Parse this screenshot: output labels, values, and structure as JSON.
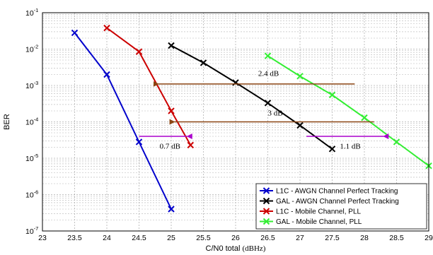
{
  "chart_data": {
    "type": "line",
    "xlabel_main": "C/N0 total",
    "xlabel_unit": "(dBHz)",
    "ylabel": "BER",
    "xlim": [
      23,
      29
    ],
    "ylim_exp": [
      -7,
      -1
    ],
    "y_scale": "log",
    "x_ticks": [
      23,
      23.5,
      24,
      24.5,
      25,
      25.5,
      26,
      26.5,
      27,
      27.5,
      28,
      28.5,
      29
    ],
    "y_tick_exponents": [
      -7,
      -6,
      -5,
      -4,
      -3,
      -2,
      -1
    ],
    "y_tick_base": "10",
    "grid": true,
    "legend_position": "bottom-right",
    "series": [
      {
        "name": "L1C - AWGN Channel Perfect Tracking",
        "color": "#0000cc",
        "x": [
          23.5,
          24,
          24.5,
          25
        ],
        "y": [
          0.028,
          0.002,
          2.8e-05,
          4e-07
        ]
      },
      {
        "name": "GAL - AWGN Channel Perfect Tracking",
        "color": "#000000",
        "x": [
          25,
          25.5,
          26,
          26.5,
          27,
          27.5
        ],
        "y": [
          0.0125,
          0.0042,
          0.0012,
          0.00033,
          8e-05,
          1.8e-05
        ]
      },
      {
        "name": "L1C - Mobile Channel, PLL",
        "color": "#cc0000",
        "x": [
          24,
          24.5,
          25,
          25.3
        ],
        "y": [
          0.038,
          0.0085,
          0.0002,
          2.3e-05
        ]
      },
      {
        "name": "GAL - Mobile Channel, PLL",
        "color": "#33ee33",
        "x": [
          26.5,
          27,
          27.5,
          28,
          28.5,
          29
        ],
        "y": [
          0.0065,
          0.0018,
          0.00055,
          0.00013,
          2.8e-05,
          6.2e-06
        ]
      }
    ],
    "annotations": [
      {
        "label": "2.4 dB",
        "x_from": 27.85,
        "x_to": 24.8,
        "y": 0.0011,
        "arrow_color": "#8b4513",
        "arrow_head": "left",
        "label_x": 26.35,
        "label_y": 0.0022
      },
      {
        "label": "3 dB",
        "x_from": 28.15,
        "x_to": 25.05,
        "y": 0.0001,
        "arrow_color": "#8b4513",
        "arrow_head": "left",
        "label_x": 26.5,
        "label_y": 0.00018
      },
      {
        "label": "0.7 dB",
        "x_from": 24.5,
        "x_to": 25.25,
        "y": 4e-05,
        "arrow_color": "#aa00cc",
        "arrow_head": "right",
        "label_x": 24.82,
        "label_y": 2.2e-05
      },
      {
        "label": "1.1 dB",
        "x_from": 27.1,
        "x_to": 28.3,
        "y": 4e-05,
        "arrow_color": "#aa00cc",
        "arrow_head": "right",
        "label_x": 27.62,
        "label_y": 2.2e-05
      }
    ]
  }
}
